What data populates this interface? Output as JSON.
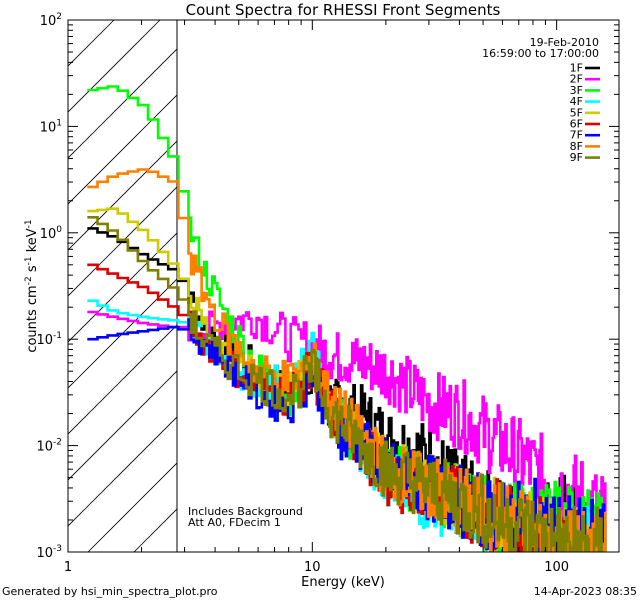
{
  "chart_data": {
    "type": "line",
    "title": "Count Spectra for RHESSI Front Segments",
    "xlabel": "Energy (keV)",
    "ylabel_parts": [
      "counts cm",
      "-2",
      " s",
      "-1",
      " keV",
      "-1"
    ],
    "xscale": "log",
    "yscale": "log",
    "xlim": [
      1,
      180
    ],
    "ylim": [
      0.001,
      100
    ],
    "x_ticks": [
      {
        "value": 1,
        "label": "1"
      },
      {
        "value": 10,
        "label": "10"
      },
      {
        "value": 100,
        "label": "100"
      }
    ],
    "y_ticks": [
      {
        "value": 0.001,
        "base": "10",
        "exp": "-3"
      },
      {
        "value": 0.01,
        "base": "10",
        "exp": "-2"
      },
      {
        "value": 0.1,
        "base": "10",
        "exp": "-1"
      },
      {
        "value": 1,
        "base": "10",
        "exp": "0"
      },
      {
        "value": 10,
        "base": "10",
        "exp": "1"
      },
      {
        "value": 100,
        "base": "10",
        "exp": "2"
      }
    ],
    "excluded_region": {
      "from": 1,
      "to": 3,
      "pattern": "hatched"
    },
    "date": "19-Feb-2010",
    "time_range": "16:59:00 to 17:00:00",
    "annotation_lines": [
      "Includes Background",
      "Att A0, FDecim 1"
    ],
    "series": [
      {
        "name": "1F",
        "color": "#000000",
        "x": [
          1.2,
          1.5,
          2.0,
          2.6,
          3.0,
          3.5,
          4.5,
          6.0,
          8.0,
          10.0,
          12.0,
          16.0,
          20.0,
          30.0,
          40.0,
          60.0,
          80.0,
          100.0,
          130.0,
          160.0
        ],
        "values": [
          1.1,
          0.9,
          0.6,
          0.45,
          0.3,
          0.15,
          0.08,
          0.05,
          0.03,
          0.055,
          0.025,
          0.02,
          0.012,
          0.008,
          0.004,
          0.002,
          0.002,
          0.0025,
          0.0015,
          0.001
        ]
      },
      {
        "name": "2F",
        "color": "#ff00ff",
        "x": [
          1.2,
          1.5,
          2.0,
          2.6,
          3.0,
          3.5,
          4.5,
          6.0,
          8.0,
          10.0,
          12.0,
          16.0,
          20.0,
          30.0,
          40.0,
          60.0,
          80.0,
          100.0,
          130.0,
          160.0
        ],
        "values": [
          0.18,
          0.16,
          0.14,
          0.13,
          0.13,
          0.12,
          0.15,
          0.16,
          0.1,
          0.09,
          0.07,
          0.06,
          0.05,
          0.025,
          0.02,
          0.01,
          0.006,
          0.004,
          0.003,
          0.002
        ]
      },
      {
        "name": "3F",
        "color": "#00ff00",
        "x": [
          1.2,
          1.5,
          2.0,
          2.6,
          3.0,
          3.5,
          4.5,
          6.0,
          8.0,
          10.0,
          12.0,
          16.0,
          20.0,
          30.0,
          40.0,
          60.0,
          80.0,
          100.0,
          130.0,
          160.0
        ],
        "values": [
          22,
          24,
          15,
          5,
          1.5,
          0.5,
          0.15,
          0.05,
          0.03,
          0.06,
          0.02,
          0.01,
          0.006,
          0.004,
          0.003,
          0.002,
          0.002,
          0.0018,
          0.0015,
          0.0012
        ]
      },
      {
        "name": "4F",
        "color": "#00ffff",
        "x": [
          1.2,
          1.5,
          2.0,
          2.6,
          3.0,
          3.5,
          4.5,
          6.0,
          8.0,
          10.0,
          12.0,
          16.0,
          20.0,
          30.0,
          40.0,
          60.0,
          80.0,
          100.0,
          130.0,
          160.0
        ],
        "values": [
          0.23,
          0.18,
          0.16,
          0.15,
          0.14,
          0.11,
          0.06,
          0.04,
          0.035,
          0.07,
          0.02,
          0.01,
          0.005,
          0.003,
          0.003,
          0.002,
          0.0015,
          0.0012,
          0.001,
          0.001
        ]
      },
      {
        "name": "5F",
        "color": "#cccc00",
        "x": [
          1.2,
          1.5,
          2.0,
          2.6,
          3.0,
          3.5,
          4.5,
          6.0,
          8.0,
          10.0,
          12.0,
          16.0,
          20.0,
          30.0,
          40.0,
          60.0,
          80.0,
          100.0,
          130.0,
          160.0
        ],
        "values": [
          1.6,
          1.7,
          1.0,
          0.5,
          0.3,
          0.15,
          0.07,
          0.04,
          0.03,
          0.06,
          0.02,
          0.012,
          0.006,
          0.004,
          0.003,
          0.002,
          0.0015,
          0.0012,
          0.001,
          0.001
        ]
      },
      {
        "name": "6F",
        "color": "#dd0000",
        "x": [
          1.2,
          1.5,
          2.0,
          2.6,
          3.0,
          3.5,
          4.5,
          6.0,
          8.0,
          10.0,
          12.0,
          16.0,
          20.0,
          30.0,
          40.0,
          60.0,
          80.0,
          100.0,
          130.0,
          160.0
        ],
        "values": [
          0.5,
          0.4,
          0.3,
          0.2,
          0.15,
          0.1,
          0.06,
          0.035,
          0.03,
          0.05,
          0.02,
          0.01,
          0.005,
          0.004,
          0.003,
          0.002,
          0.0015,
          0.0012,
          0.001,
          0.001
        ]
      },
      {
        "name": "7F",
        "color": "#0000ff",
        "x": [
          1.2,
          1.5,
          2.0,
          2.6,
          3.0,
          3.5,
          4.5,
          6.0,
          8.0,
          10.0,
          12.0,
          16.0,
          20.0,
          30.0,
          40.0,
          60.0,
          80.0,
          100.0,
          130.0,
          160.0
        ],
        "values": [
          0.1,
          0.11,
          0.12,
          0.13,
          0.12,
          0.1,
          0.06,
          0.03,
          0.025,
          0.05,
          0.015,
          0.01,
          0.006,
          0.004,
          0.003,
          0.002,
          0.002,
          0.0015,
          0.0012,
          0.001
        ]
      },
      {
        "name": "8F",
        "color": "#ff8000",
        "x": [
          1.2,
          1.5,
          2.0,
          2.6,
          3.0,
          3.5,
          4.5,
          6.0,
          8.0,
          10.0,
          12.0,
          16.0,
          20.0,
          30.0,
          40.0,
          60.0,
          80.0,
          100.0,
          130.0,
          160.0
        ],
        "values": [
          2.7,
          3.5,
          4.0,
          3.0,
          0.8,
          0.3,
          0.1,
          0.05,
          0.04,
          0.06,
          0.025,
          0.012,
          0.006,
          0.004,
          0.003,
          0.002,
          0.0015,
          0.0012,
          0.001,
          0.001
        ]
      },
      {
        "name": "9F",
        "color": "#808000",
        "x": [
          1.2,
          1.5,
          2.0,
          2.6,
          3.0,
          3.5,
          4.5,
          6.0,
          8.0,
          10.0,
          12.0,
          16.0,
          20.0,
          30.0,
          40.0,
          60.0,
          80.0,
          100.0,
          130.0,
          160.0
        ],
        "values": [
          1.4,
          1.0,
          0.5,
          0.3,
          0.2,
          0.1,
          0.06,
          0.04,
          0.03,
          0.05,
          0.02,
          0.01,
          0.006,
          0.004,
          0.003,
          0.002,
          0.0015,
          0.0012,
          0.001,
          0.001
        ]
      }
    ]
  },
  "footer": {
    "generator": "Generated by hsi_min_spectra_plot.pro",
    "timestamp": "14-Apr-2023 08:35"
  }
}
